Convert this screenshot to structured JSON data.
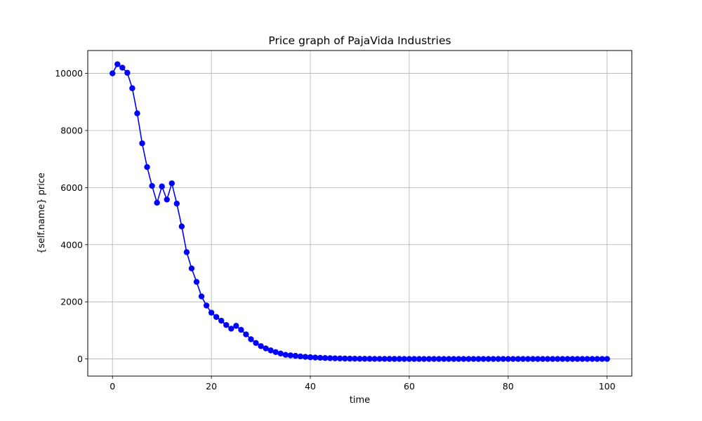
{
  "chart_data": {
    "type": "line",
    "title": "Price graph of PajaVida Industries",
    "xlabel": "time",
    "ylabel": "{self.name} price",
    "xlim": [
      -5,
      105
    ],
    "ylim": [
      -600,
      10800
    ],
    "xticks": [
      0,
      20,
      40,
      60,
      80,
      100
    ],
    "yticks": [
      0,
      2000,
      4000,
      6000,
      8000,
      10000
    ],
    "grid": true,
    "legend": "none",
    "series": [
      {
        "color": "#0000ff",
        "marker": "circle",
        "x": [
          0,
          1,
          2,
          3,
          4,
          5,
          6,
          7,
          8,
          9,
          10,
          11,
          12,
          13,
          14,
          15,
          16,
          17,
          18,
          19,
          20,
          21,
          22,
          23,
          24,
          25,
          26,
          27,
          28,
          29,
          30,
          31,
          32,
          33,
          34,
          35,
          36,
          37,
          38,
          39,
          40,
          41,
          42,
          43,
          44,
          45,
          46,
          47,
          48,
          49,
          50,
          51,
          52,
          53,
          54,
          55,
          56,
          57,
          58,
          59,
          60,
          61,
          62,
          63,
          64,
          65,
          66,
          67,
          68,
          69,
          70,
          71,
          72,
          73,
          74,
          75,
          76,
          77,
          78,
          79,
          80,
          81,
          82,
          83,
          84,
          85,
          86,
          87,
          88,
          89,
          90,
          91,
          92,
          93,
          94,
          95,
          96,
          97,
          98,
          99,
          100
        ],
        "values": [
          10000,
          10320,
          10200,
          10020,
          9480,
          8600,
          7550,
          6720,
          6060,
          5470,
          6040,
          5580,
          6150,
          5440,
          4640,
          3740,
          3170,
          2700,
          2190,
          1870,
          1620,
          1470,
          1340,
          1190,
          1060,
          1160,
          1020,
          860,
          690,
          560,
          450,
          370,
          300,
          240,
          190,
          145,
          125,
          110,
          90,
          75,
          60,
          50,
          40,
          33,
          27,
          22,
          18,
          14,
          11,
          9,
          7,
          6,
          5,
          4,
          3,
          3,
          2,
          2,
          2,
          1,
          1,
          1,
          1,
          1,
          1,
          1,
          0,
          0,
          0,
          0,
          0,
          0,
          0,
          0,
          0,
          0,
          0,
          0,
          0,
          0,
          0,
          0,
          0,
          0,
          0,
          0,
          0,
          0,
          0,
          0,
          0,
          0,
          0,
          0,
          0,
          0,
          0,
          0,
          0,
          0,
          0
        ]
      }
    ]
  }
}
